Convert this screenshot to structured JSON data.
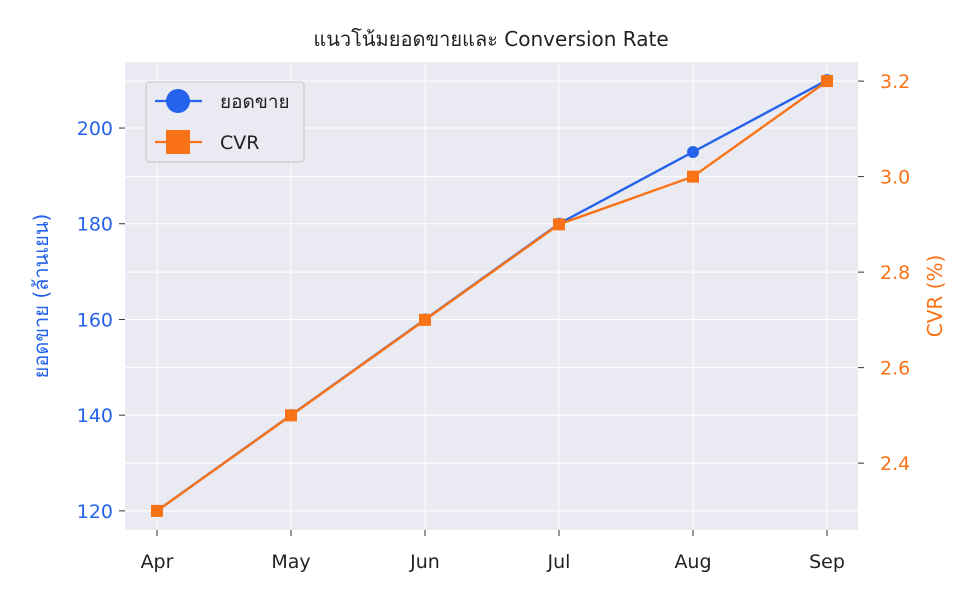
{
  "chart_data": {
    "type": "line",
    "title": "แนวโน้มยอดขายและ Conversion Rate",
    "categories": [
      "Apr",
      "May",
      "Jun",
      "Jul",
      "Aug",
      "Sep"
    ],
    "series": [
      {
        "name": "ยอดขาย",
        "axis": "left",
        "values": [
          120,
          140,
          160,
          180,
          195,
          210
        ],
        "color": "#2563eb",
        "marker": "circle"
      },
      {
        "name": "CVR",
        "axis": "right",
        "values": [
          2.3,
          2.5,
          2.7,
          2.9,
          3.0,
          3.2
        ],
        "color": "#f97316",
        "marker": "square"
      }
    ],
    "ylabel_left": "ยอดขาย (ล้านเยน)",
    "ylabel_right": "CVR (%)",
    "ylim_left": [
      116,
      213.8
    ],
    "ylim_right": [
      2.26,
      3.24
    ],
    "yticks_left": [
      120,
      140,
      160,
      180,
      200
    ],
    "yticks_right": [
      "2.4",
      "2.6",
      "2.8",
      "3.0",
      "3.2"
    ],
    "grid": true,
    "legend_placement": "top-left",
    "background": "#eaeaf2"
  }
}
